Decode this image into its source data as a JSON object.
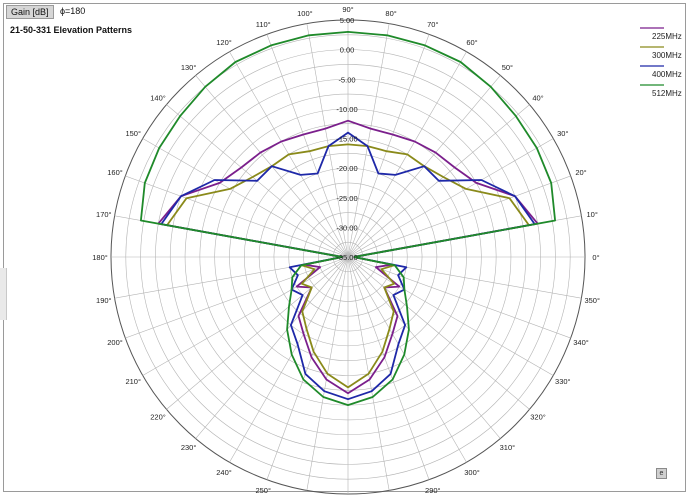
{
  "header": {
    "gain_tab": "Gain [dB]",
    "phi_label": "ϕ=180",
    "title": "21-50-331 Elevation Patterns"
  },
  "chart_data": {
    "type": "polar-line",
    "title": "21-50-331 Elevation Patterns",
    "radial_unit": "dB",
    "radial_range": [
      -35,
      5
    ],
    "radial_ticks": [
      "5.00",
      "0.00",
      "-5.00",
      "-10.00",
      "-15.00",
      "-20.00",
      "-25.00",
      "-30.00",
      "-35.00"
    ],
    "angle_ticks": [
      "0°",
      "10°",
      "20°",
      "30°",
      "40°",
      "50°",
      "60°",
      "70°",
      "80°",
      "90°",
      "100°",
      "110°",
      "120°",
      "130°",
      "140°",
      "150°",
      "160°",
      "170°",
      "180°",
      "190°",
      "200°",
      "210°",
      "220°",
      "230°",
      "240°",
      "250°",
      "260°",
      "270°",
      "280°",
      "290°",
      "300°",
      "310°",
      "320°",
      "330°",
      "340°",
      "350°"
    ],
    "angles_deg": [
      0,
      10,
      20,
      30,
      40,
      50,
      60,
      70,
      80,
      90,
      100,
      110,
      120,
      130,
      140,
      150,
      160,
      170,
      180,
      190,
      200,
      210,
      220,
      230,
      240,
      250,
      260,
      270,
      280,
      290,
      300,
      310,
      320,
      330,
      340,
      350
    ],
    "grid": true,
    "legend_position": "top-right",
    "series": [
      {
        "name": "225MHz",
        "color": "#7b1f8c",
        "values": [
          -34,
          -2.5,
          -5,
          -10,
          -11.5,
          -12,
          -12.5,
          -13,
          -13,
          -12,
          -13,
          -13,
          -12.5,
          -12,
          -11.5,
          -10,
          -5,
          -2.5,
          -34,
          -27.5,
          -30,
          -25,
          -27,
          -22,
          -20,
          -17,
          -14,
          -12,
          -14,
          -17,
          -20,
          -22,
          -27,
          -25,
          -30,
          -27.5
        ]
      },
      {
        "name": "300MHz",
        "color": "#8a8a1a",
        "values": [
          -34,
          -4,
          -6,
          -12,
          -14,
          -15,
          -15,
          -16,
          -16,
          -16,
          -16,
          -16,
          -15,
          -15,
          -14,
          -12,
          -6,
          -4,
          -34,
          -27,
          -29,
          -26,
          -27,
          -23,
          -21,
          -18,
          -15,
          -13,
          -15,
          -18,
          -21,
          -23,
          -27,
          -26,
          -29,
          -27
        ]
      },
      {
        "name": "400MHz",
        "color": "#1e28a8",
        "values": [
          -34,
          -3,
          -5,
          -9,
          -15,
          -15,
          -19,
          -20,
          -16,
          -14,
          -16,
          -20,
          -19,
          -15,
          -15,
          -9,
          -5,
          -3,
          -34,
          -25,
          -26,
          -24,
          -25,
          -20,
          -18,
          -14,
          -12,
          -11,
          -12,
          -14,
          -18,
          -20,
          -25,
          -24,
          -26,
          -25
        ]
      },
      {
        "name": "512MHz",
        "color": "#1f8a2a",
        "values": [
          -34,
          0.5,
          1.5,
          1.8,
          2,
          2.5,
          3,
          3,
          3,
          3,
          3,
          3,
          3,
          2.5,
          2,
          1.8,
          1.5,
          0.5,
          -34,
          -27,
          -25,
          -24,
          -22,
          -19,
          -16,
          -13,
          -11,
          -10,
          -11,
          -13,
          -16,
          -19,
          -22,
          -24,
          -25,
          -27
        ]
      }
    ]
  }
}
